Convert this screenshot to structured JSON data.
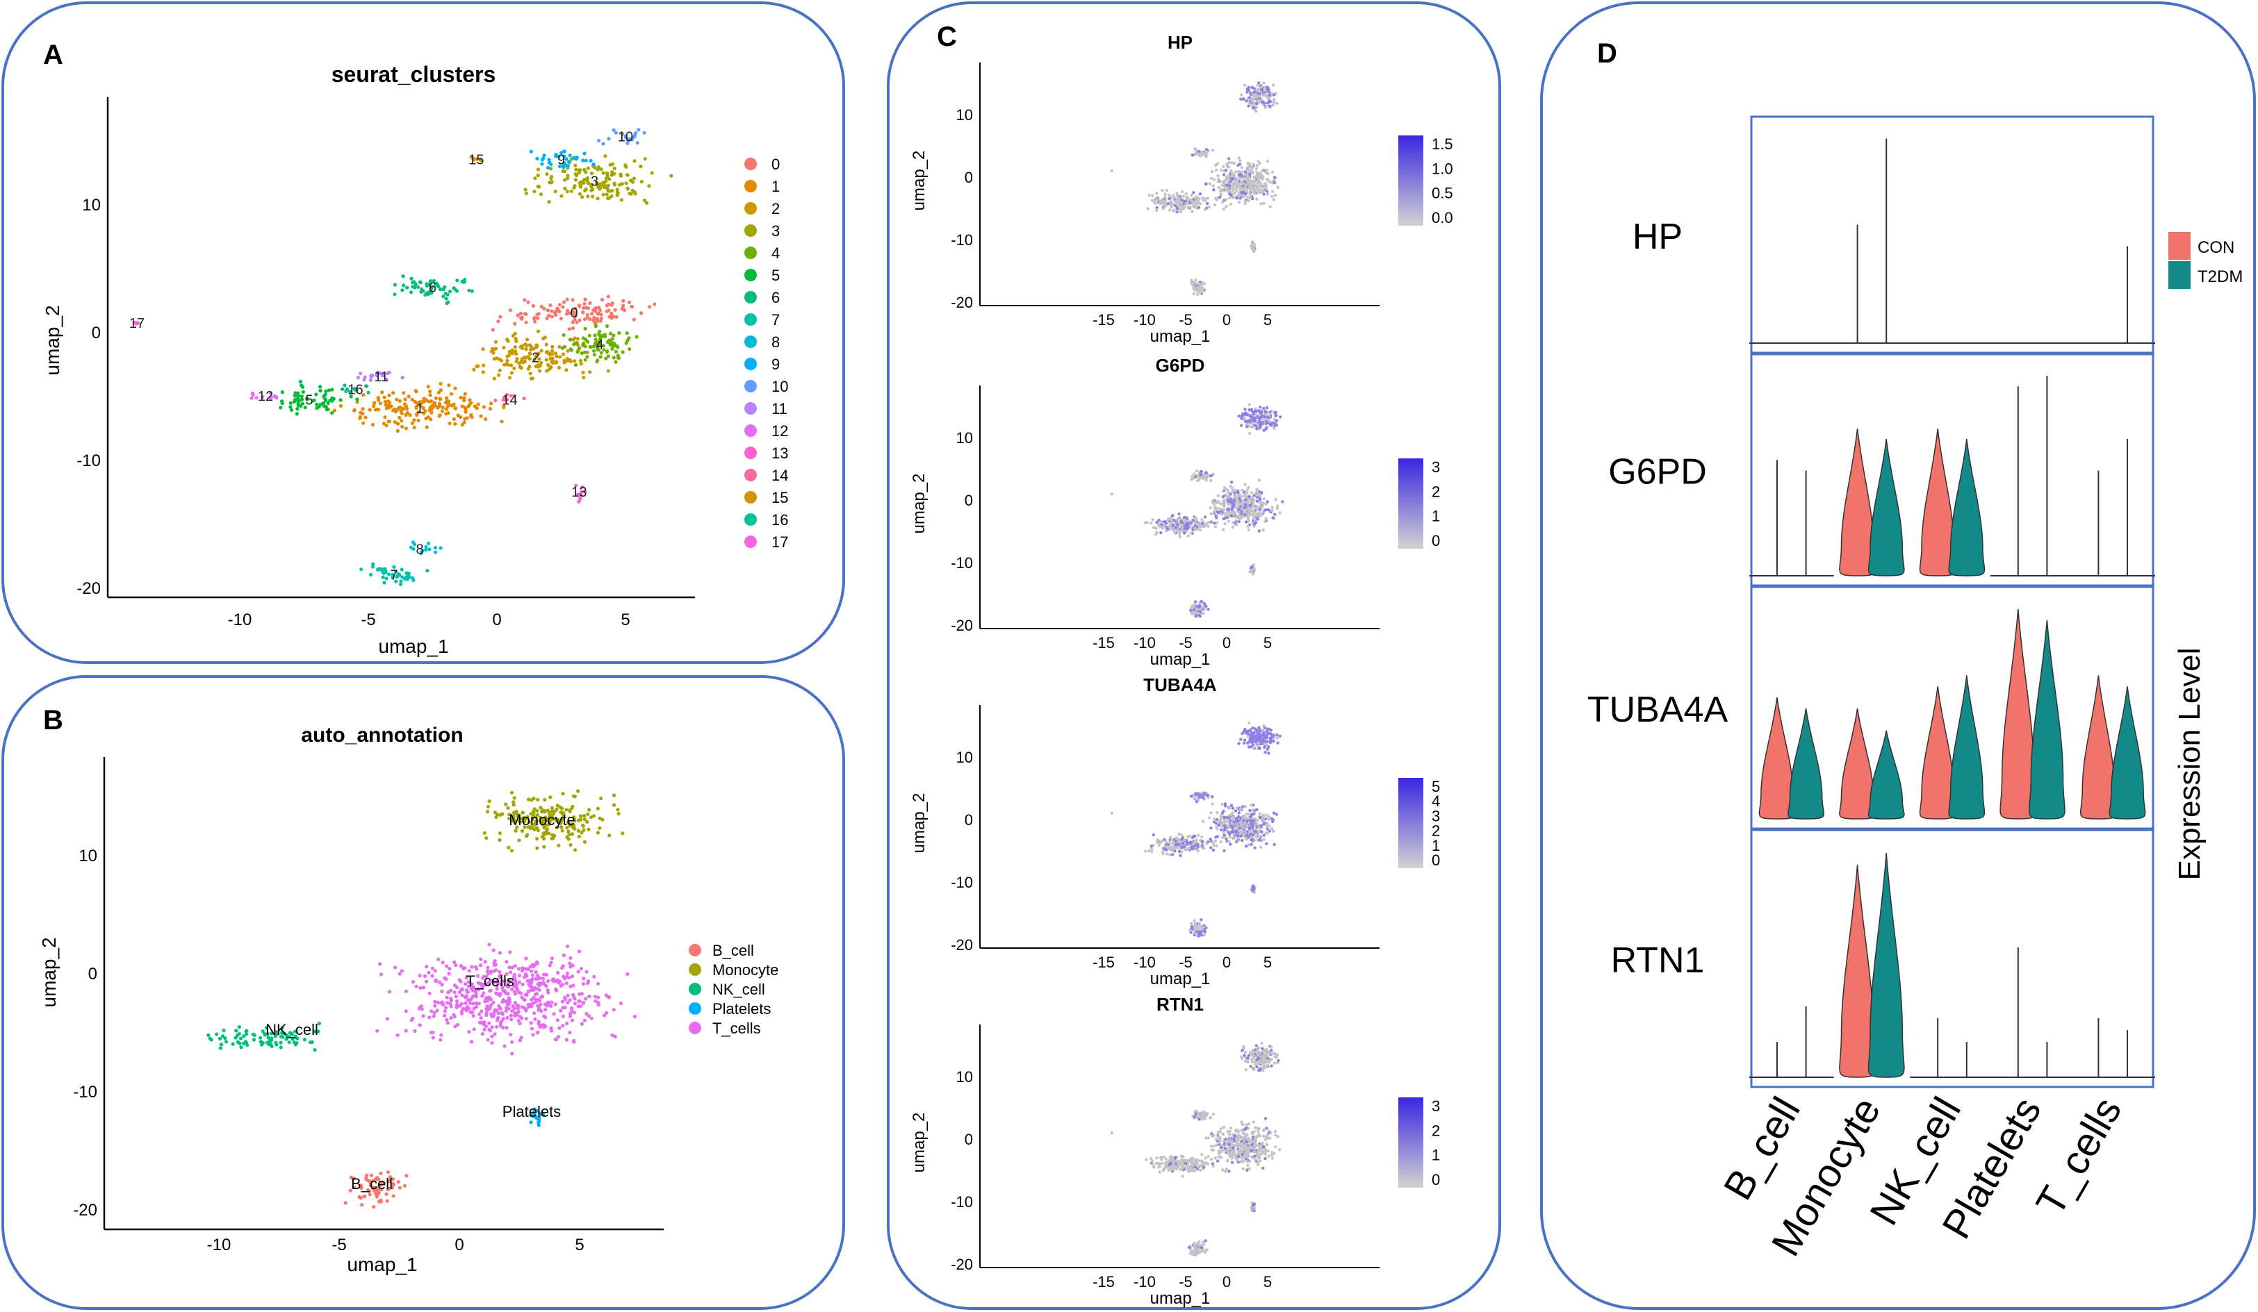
{
  "colors": {
    "panel_border": "#4a72c4",
    "axis": "#000000",
    "umap_grey": "#c4c4c4",
    "feature_hi": "#3a26e0",
    "feature_lo": "#d2d2d2",
    "con": "#f0746a",
    "t2dm": "#138a8a"
  },
  "cluster_palette": [
    "#f8766d",
    "#e58700",
    "#c99800",
    "#a3a500",
    "#6bb100",
    "#00ba38",
    "#00bf7d",
    "#00c0af",
    "#00bcd8",
    "#00b0f6",
    "#619cff",
    "#b983ff",
    "#e76bf3",
    "#fd61d1",
    "#ff67a4",
    "#d39200",
    "#00c19a",
    "#f763e0"
  ],
  "panelA": {
    "letter": "A",
    "title": "seurat_clusters",
    "xlabel": "umap_1",
    "ylabel": "umap_2",
    "xticks": [
      "-10",
      "-5",
      "0",
      "5"
    ],
    "yticks": [
      "10",
      "0",
      "-10",
      "-20"
    ],
    "legend": [
      "0",
      "1",
      "2",
      "3",
      "4",
      "5",
      "6",
      "7",
      "8",
      "9",
      "10",
      "11",
      "12",
      "13",
      "14",
      "15",
      "16",
      "17"
    ]
  },
  "panelB": {
    "letter": "B",
    "title": "auto_annotation",
    "xlabel": "umap_1",
    "ylabel": "umap_2",
    "xticks": [
      "-10",
      "-5",
      "0",
      "5"
    ],
    "yticks": [
      "10",
      "0",
      "-10",
      "-20"
    ],
    "legend": [
      "B_cell",
      "Monocyte",
      "NK_cell",
      "Platelets",
      "T_cells"
    ],
    "legend_colors": [
      "#f8766d",
      "#a3a500",
      "#00bf7d",
      "#00b0f6",
      "#e76bf3"
    ],
    "annotations": [
      "Monocyte",
      "T_cells",
      "NK_cell",
      "Platelets",
      "B_cell"
    ]
  },
  "panelC": {
    "letter": "C",
    "xlabel": "umap_1",
    "ylabel": "umap_2",
    "xticks": [
      "-15",
      "-10",
      "-5",
      "0",
      "5"
    ],
    "yticks": [
      "10",
      "0",
      "-10",
      "-20"
    ],
    "features": [
      {
        "gene": "HP",
        "xlabel": "umap_1",
        "scale": [
          "1.5",
          "1.0",
          "0.5",
          "0.0"
        ],
        "intensity": 0.25
      },
      {
        "gene": "G6PD",
        "xlabel": "umap_1",
        "scale": [
          "3",
          "2",
          "1",
          "0"
        ],
        "intensity": 0.45
      },
      {
        "gene": "TUBA4A",
        "xlabel": "umap_1",
        "scale": [
          "5",
          "4",
          "3",
          "2",
          "1",
          "0"
        ],
        "intensity": 0.55
      },
      {
        "gene": "RTN1",
        "xlabel": "umap_1",
        "scale": [
          "3",
          "2",
          "1",
          "0"
        ],
        "intensity": 0.2
      }
    ]
  },
  "panelD": {
    "letter": "D",
    "ylabel": "Expression Level",
    "legend": [
      "CON",
      "T2DM"
    ],
    "genes": [
      "HP",
      "G6PD",
      "TUBA4A",
      "RTN1"
    ],
    "cell_types": [
      "B_cell",
      "Monocyte",
      "NK_cell",
      "Platelets",
      "T_cells"
    ]
  },
  "chart_data": [
    {
      "type": "scatter",
      "title": "seurat_clusters",
      "xlabel": "umap_1",
      "ylabel": "umap_2",
      "xlim": [
        -14.5,
        8
      ],
      "ylim": [
        -21,
        18
      ],
      "series": [
        {
          "name": "0",
          "center": [
            3.0,
            2.0
          ],
          "spread": [
            2.2,
            0.9
          ]
        },
        {
          "name": "1",
          "center": [
            -3.0,
            -5.5
          ],
          "spread": [
            2.4,
            1.3
          ]
        },
        {
          "name": "2",
          "center": [
            1.5,
            -1.5
          ],
          "spread": [
            1.8,
            1.4
          ]
        },
        {
          "name": "3",
          "center": [
            3.8,
            12.3
          ],
          "spread": [
            2.0,
            1.3
          ]
        },
        {
          "name": "4",
          "center": [
            4.0,
            -0.5
          ],
          "spread": [
            1.2,
            1.3
          ]
        },
        {
          "name": "5",
          "center": [
            -7.3,
            -4.8
          ],
          "spread": [
            1.2,
            0.9
          ]
        },
        {
          "name": "6",
          "center": [
            -2.5,
            4.0
          ],
          "spread": [
            1.2,
            0.8
          ]
        },
        {
          "name": "7",
          "center": [
            -4.0,
            -18.5
          ],
          "spread": [
            1.0,
            0.7
          ]
        },
        {
          "name": "8",
          "center": [
            -3.0,
            -16.5
          ],
          "spread": [
            0.6,
            0.4
          ]
        },
        {
          "name": "9",
          "center": [
            2.5,
            14.0
          ],
          "spread": [
            1.0,
            0.6
          ]
        },
        {
          "name": "10",
          "center": [
            5.0,
            15.8
          ],
          "spread": [
            0.7,
            0.5
          ]
        },
        {
          "name": "11",
          "center": [
            -4.5,
            -3.0
          ],
          "spread": [
            1.0,
            0.3
          ]
        },
        {
          "name": "12",
          "center": [
            -9.0,
            -4.5
          ],
          "spread": [
            0.6,
            0.3
          ]
        },
        {
          "name": "13",
          "center": [
            3.2,
            -12.0
          ],
          "spread": [
            0.2,
            0.8
          ]
        },
        {
          "name": "14",
          "center": [
            0.5,
            -4.8
          ],
          "spread": [
            0.5,
            0.3
          ]
        },
        {
          "name": "15",
          "center": [
            -0.8,
            14.0
          ],
          "spread": [
            0.2,
            0.2
          ]
        },
        {
          "name": "16",
          "center": [
            -5.5,
            -4.0
          ],
          "spread": [
            0.5,
            0.3
          ]
        },
        {
          "name": "17",
          "center": [
            -14.0,
            1.2
          ],
          "spread": [
            0.1,
            0.1
          ]
        }
      ]
    },
    {
      "type": "scatter",
      "title": "auto_annotation",
      "xlabel": "umap_1",
      "ylabel": "umap_2",
      "xlim": [
        -15,
        9
      ],
      "ylim": [
        -21,
        18
      ],
      "series": [
        {
          "name": "Monocyte",
          "center": [
            3.8,
            13.5
          ],
          "spread": [
            2.2,
            1.8
          ]
        },
        {
          "name": "T_cells",
          "center": [
            2.0,
            -1.5
          ],
          "spread": [
            3.5,
            3.0
          ]
        },
        {
          "name": "NK_cell",
          "center": [
            -8.0,
            -4.8
          ],
          "spread": [
            2.0,
            0.8
          ]
        },
        {
          "name": "Platelets",
          "center": [
            3.2,
            -11.5
          ],
          "spread": [
            0.2,
            0.8
          ]
        },
        {
          "name": "B_cell",
          "center": [
            -3.5,
            -17.8
          ],
          "spread": [
            1.0,
            1.2
          ]
        }
      ]
    },
    {
      "type": "violin",
      "title": "Expression Level",
      "categories": [
        "B_cell",
        "Monocyte",
        "NK_cell",
        "Platelets",
        "T_cells"
      ],
      "groups": [
        "CON",
        "T2DM"
      ],
      "series": [
        {
          "name": "HP",
          "max": {
            "CON": [
              0,
              0.55,
              0,
              0,
              0
            ],
            "T2DM": [
              0,
              0.95,
              0,
              0,
              0.45
            ]
          }
        },
        {
          "name": "G6PD",
          "max": {
            "CON": [
              0.55,
              0.7,
              0.7,
              0.9,
              0.5
            ],
            "T2DM": [
              0.5,
              0.65,
              0.65,
              0.95,
              0.65
            ]
          }
        },
        {
          "name": "TUBA4A",
          "max": {
            "CON": [
              0.55,
              0.5,
              0.6,
              0.95,
              0.65
            ],
            "T2DM": [
              0.5,
              0.4,
              0.65,
              0.9,
              0.6
            ]
          }
        },
        {
          "name": "RTN1",
          "max": {
            "CON": [
              0.15,
              0.9,
              0.25,
              0.55,
              0.25
            ],
            "T2DM": [
              0.3,
              0.95,
              0.15,
              0.15,
              0.2
            ]
          }
        }
      ]
    }
  ]
}
